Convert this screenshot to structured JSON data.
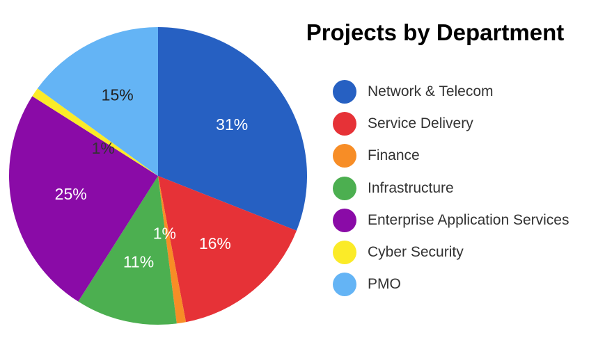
{
  "chart_data": {
    "type": "pie",
    "title": "Projects by Department",
    "legend_position": "right",
    "slices": [
      {
        "name": "Network & Telecom",
        "value": 31,
        "label": "31%",
        "color": "#2660c2"
      },
      {
        "name": "Service Delivery",
        "value": 16,
        "label": "16%",
        "color": "#e63237"
      },
      {
        "name": "Finance",
        "value": 1,
        "label": "1%",
        "color": "#f78d26"
      },
      {
        "name": "Infrastructure",
        "value": 11,
        "label": "11%",
        "color": "#4caf50"
      },
      {
        "name": "Enterprise Application Services",
        "value": 25,
        "label": "25%",
        "color": "#8a0ba7"
      },
      {
        "name": "Cyber Security",
        "value": 1,
        "label": "1%",
        "color": "#fbeb28"
      },
      {
        "name": "PMO",
        "value": 15,
        "label": "15%",
        "color": "#64b4f5"
      }
    ]
  }
}
